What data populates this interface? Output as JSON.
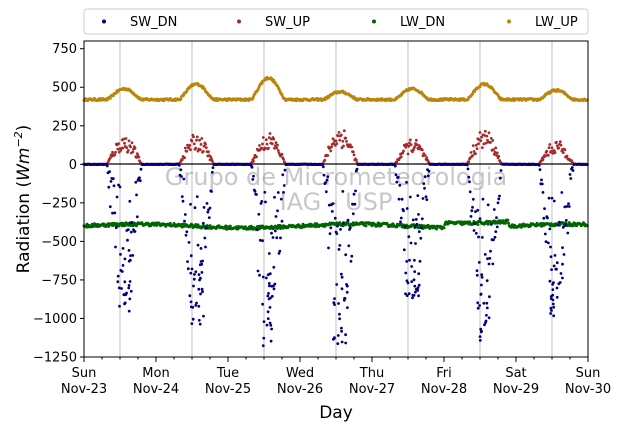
{
  "chart_data": {
    "type": "scatter",
    "xlabel": "Day",
    "ylabel_main": "Radiation (",
    "ylabel_unit": "Wm",
    "ylabel_exp": "−2",
    "ylabel_close": ")",
    "watermark": [
      "Grupo de Micrometeorologia",
      "IAG - USP"
    ],
    "ylim": [
      -1250,
      800
    ],
    "yticks": [
      -1250,
      -1000,
      -750,
      -500,
      -250,
      0,
      250,
      500,
      750
    ],
    "ytick_labels": [
      "−1250",
      "−1000",
      "−750",
      "−500",
      "−250",
      "0",
      "250",
      "500",
      "750"
    ],
    "xlim_days": [
      0,
      7
    ],
    "xticks": [
      {
        "day": 0,
        "weekday": "Sun",
        "date": "Nov-23"
      },
      {
        "day": 1,
        "weekday": "Mon",
        "date": "Nov-24"
      },
      {
        "day": 2,
        "weekday": "Tue",
        "date": "Nov-25"
      },
      {
        "day": 3,
        "weekday": "Wed",
        "date": "Nov-26"
      },
      {
        "day": 4,
        "weekday": "Thu",
        "date": "Nov-27"
      },
      {
        "day": 5,
        "weekday": "Fri",
        "date": "Nov-28"
      },
      {
        "day": 6,
        "weekday": "Sat",
        "date": "Nov-29"
      },
      {
        "day": 7,
        "weekday": "Sun",
        "date": "Nov-30"
      }
    ],
    "grid": "vertical",
    "legend_position": "top",
    "series": [
      {
        "name": "SW_DN",
        "color": "#000080",
        "daily_min": [
          -960,
          -1040,
          -1180,
          -1180,
          -900,
          -1180,
          -1000
        ]
      },
      {
        "name": "SW_UP",
        "color": "#a52a2a",
        "daily_peak": [
          180,
          190,
          200,
          240,
          160,
          220,
          150
        ]
      },
      {
        "name": "LW_DN",
        "color": "#006400",
        "baseline": -400,
        "range": [
          -430,
          -350
        ]
      },
      {
        "name": "LW_UP",
        "color": "#b8860b",
        "night": 420,
        "daily_peak": [
          490,
          520,
          560,
          470,
          490,
          520,
          480
        ]
      }
    ]
  }
}
